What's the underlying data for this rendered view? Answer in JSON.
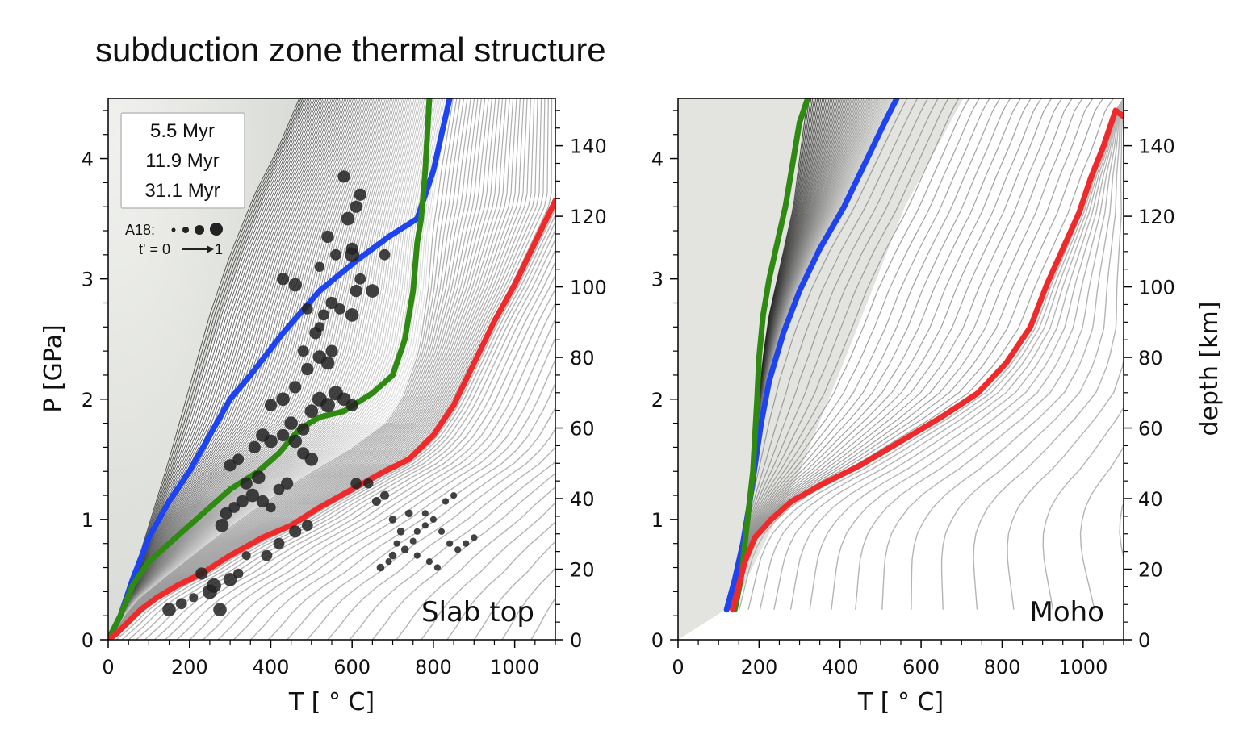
{
  "title": "subduction zone thermal structure",
  "colors": {
    "red": "#f02a2a",
    "green": "#2f8a12",
    "blue": "#1d44f0",
    "bg_region": "#e3e4e0",
    "thin_lines": "#b4b4b4",
    "dots": "#222222"
  },
  "legend": {
    "entries": [
      {
        "label": "5.5 Myr",
        "color": "#f02a2a"
      },
      {
        "label": "11.9 Myr",
        "color": "#2f8a12"
      },
      {
        "label": "31.1 Myr",
        "color": "#1d44f0"
      }
    ],
    "a18_label": "A18:",
    "t_label": "t' = 0",
    "t_end": "1"
  },
  "chart_data": [
    {
      "type": "line",
      "panel_label": "Slab top",
      "xlabel": "T [ ° C]",
      "ylabel": "P [GPa]",
      "ylabel_right": "",
      "xlim": [
        0,
        1100
      ],
      "ylim": [
        0,
        4.5
      ],
      "xticks": [
        0,
        200,
        400,
        600,
        800,
        1000
      ],
      "yticks": [
        0,
        1,
        2,
        3,
        4
      ],
      "y2lim": [
        0,
        153.4
      ],
      "y2ticks": [
        0,
        20,
        40,
        60,
        80,
        100,
        120,
        140
      ],
      "series": [
        {
          "name": "5.5 Myr",
          "color": "#f02a2a",
          "points": [
            [
              0,
              0
            ],
            [
              20,
              0.05
            ],
            [
              50,
              0.15
            ],
            [
              80,
              0.25
            ],
            [
              120,
              0.35
            ],
            [
              170,
              0.45
            ],
            [
              230,
              0.55
            ],
            [
              300,
              0.7
            ],
            [
              380,
              0.85
            ],
            [
              450,
              0.95
            ],
            [
              520,
              1.1
            ],
            [
              600,
              1.25
            ],
            [
              680,
              1.4
            ],
            [
              740,
              1.5
            ],
            [
              800,
              1.7
            ],
            [
              850,
              1.95
            ],
            [
              900,
              2.3
            ],
            [
              950,
              2.65
            ],
            [
              1000,
              2.95
            ],
            [
              1050,
              3.3
            ],
            [
              1100,
              3.65
            ]
          ]
        },
        {
          "name": "11.9 Myr",
          "color": "#2f8a12",
          "points": [
            [
              0,
              0
            ],
            [
              30,
              0.2
            ],
            [
              60,
              0.45
            ],
            [
              100,
              0.65
            ],
            [
              150,
              0.8
            ],
            [
              200,
              0.95
            ],
            [
              250,
              1.1
            ],
            [
              300,
              1.25
            ],
            [
              370,
              1.4
            ],
            [
              420,
              1.55
            ],
            [
              470,
              1.75
            ],
            [
              520,
              1.85
            ],
            [
              580,
              1.9
            ],
            [
              650,
              2.05
            ],
            [
              700,
              2.2
            ],
            [
              730,
              2.5
            ],
            [
              750,
              2.9
            ],
            [
              760,
              3.3
            ],
            [
              770,
              3.5
            ],
            [
              780,
              3.9
            ],
            [
              790,
              4.5
            ]
          ]
        },
        {
          "name": "31.1 Myr",
          "color": "#1d44f0",
          "points": [
            [
              0,
              0
            ],
            [
              30,
              0.2
            ],
            [
              60,
              0.5
            ],
            [
              100,
              0.85
            ],
            [
              150,
              1.15
            ],
            [
              200,
              1.4
            ],
            [
              250,
              1.7
            ],
            [
              300,
              2.0
            ],
            [
              350,
              2.2
            ],
            [
              430,
              2.55
            ],
            [
              520,
              2.9
            ],
            [
              610,
              3.15
            ],
            [
              690,
              3.35
            ],
            [
              760,
              3.5
            ],
            [
              800,
              3.9
            ],
            [
              820,
              4.2
            ],
            [
              840,
              4.5
            ]
          ]
        }
      ],
      "a18_points": [
        [
          150,
          0.25,
          0.9
        ],
        [
          180,
          0.3,
          0.7
        ],
        [
          210,
          0.35,
          0.5
        ],
        [
          230,
          0.55,
          0.8
        ],
        [
          250,
          0.4,
          1.0
        ],
        [
          260,
          0.45,
          1.0
        ],
        [
          275,
          0.25,
          0.9
        ],
        [
          300,
          0.5,
          0.9
        ],
        [
          320,
          0.55,
          0.6
        ],
        [
          340,
          0.7,
          0.5
        ],
        [
          390,
          0.7,
          0.7
        ],
        [
          420,
          0.8,
          0.7
        ],
        [
          460,
          0.9,
          0.8
        ],
        [
          490,
          0.95,
          0.7
        ],
        [
          280,
          0.95,
          0.9
        ],
        [
          290,
          1.05,
          0.8
        ],
        [
          310,
          1.1,
          0.7
        ],
        [
          330,
          1.15,
          0.8
        ],
        [
          355,
          1.2,
          0.9
        ],
        [
          380,
          1.15,
          0.8
        ],
        [
          400,
          1.1,
          0.6
        ],
        [
          420,
          1.25,
          0.7
        ],
        [
          440,
          1.3,
          0.8
        ],
        [
          340,
          1.3,
          0.8
        ],
        [
          370,
          1.35,
          0.9
        ],
        [
          300,
          1.45,
          0.8
        ],
        [
          320,
          1.5,
          0.7
        ],
        [
          360,
          1.6,
          0.8
        ],
        [
          400,
          1.65,
          0.9
        ],
        [
          430,
          1.7,
          0.8
        ],
        [
          450,
          1.8,
          0.9
        ],
        [
          480,
          1.75,
          0.8
        ],
        [
          500,
          1.9,
          0.9
        ],
        [
          520,
          2.0,
          1.0
        ],
        [
          540,
          1.95,
          1.0
        ],
        [
          560,
          2.05,
          1.0
        ],
        [
          580,
          2.0,
          0.9
        ],
        [
          600,
          1.95,
          0.8
        ],
        [
          500,
          1.5,
          0.9
        ],
        [
          480,
          1.55,
          0.8
        ],
        [
          460,
          1.65,
          0.9
        ],
        [
          380,
          1.7,
          0.9
        ],
        [
          400,
          1.95,
          0.8
        ],
        [
          430,
          2.0,
          0.9
        ],
        [
          460,
          2.1,
          0.8
        ],
        [
          490,
          2.25,
          0.8
        ],
        [
          520,
          2.35,
          0.9
        ],
        [
          550,
          2.4,
          0.8
        ],
        [
          540,
          2.3,
          0.9
        ],
        [
          480,
          2.4,
          0.7
        ],
        [
          510,
          2.55,
          0.8
        ],
        [
          530,
          2.7,
          0.7
        ],
        [
          550,
          2.8,
          0.8
        ],
        [
          570,
          2.75,
          0.7
        ],
        [
          600,
          2.7,
          0.9
        ],
        [
          610,
          2.9,
          0.8
        ],
        [
          620,
          3.0,
          0.7
        ],
        [
          650,
          2.9,
          0.9
        ],
        [
          680,
          3.2,
          0.7
        ],
        [
          520,
          3.1,
          0.6
        ],
        [
          560,
          3.2,
          0.7
        ],
        [
          600,
          3.25,
          0.8
        ],
        [
          540,
          3.35,
          0.8
        ],
        [
          590,
          3.5,
          0.9
        ],
        [
          610,
          3.6,
          0.8
        ],
        [
          620,
          3.7,
          0.8
        ],
        [
          580,
          3.85,
          0.8
        ],
        [
          600,
          3.2,
          1.0
        ],
        [
          430,
          3.0,
          0.8
        ],
        [
          460,
          2.95,
          0.9
        ],
        [
          490,
          2.75,
          0.7
        ],
        [
          520,
          2.6,
          0.6
        ],
        [
          610,
          1.3,
          0.7
        ],
        [
          640,
          1.3,
          0.6
        ],
        [
          660,
          1.15,
          0.5
        ],
        [
          680,
          1.2,
          0.5
        ],
        [
          700,
          1.0,
          0.4
        ],
        [
          720,
          0.9,
          0.4
        ],
        [
          740,
          1.05,
          0.4
        ],
        [
          760,
          0.9,
          0.3
        ],
        [
          780,
          0.95,
          0.3
        ],
        [
          800,
          1.0,
          0.3
        ],
        [
          820,
          0.9,
          0.3
        ],
        [
          840,
          0.8,
          0.3
        ],
        [
          860,
          0.75,
          0.3
        ],
        [
          880,
          0.8,
          0.3
        ],
        [
          900,
          0.85,
          0.3
        ],
        [
          670,
          0.6,
          0.4
        ],
        [
          700,
          0.7,
          0.4
        ],
        [
          730,
          0.75,
          0.4
        ],
        [
          760,
          0.7,
          0.3
        ],
        [
          790,
          0.65,
          0.3
        ],
        [
          810,
          0.6,
          0.3
        ],
        [
          690,
          0.65,
          0.3
        ],
        [
          710,
          0.8,
          0.3
        ],
        [
          750,
          0.82,
          0.3
        ],
        [
          780,
          1.05,
          0.3
        ],
        [
          830,
          1.15,
          0.3
        ],
        [
          850,
          1.2,
          0.3
        ]
      ]
    },
    {
      "type": "line",
      "panel_label": "Moho",
      "xlabel": "T [ ° C]",
      "ylabel": "",
      "ylabel_right": "depth [km]",
      "xlim": [
        0,
        1100
      ],
      "ylim": [
        0,
        4.5
      ],
      "xticks": [
        0,
        200,
        400,
        600,
        800,
        1000
      ],
      "yticks": [
        0,
        1,
        2,
        3,
        4
      ],
      "y2lim": [
        0,
        153.4
      ],
      "y2ticks": [
        0,
        20,
        40,
        60,
        80,
        100,
        120,
        140
      ],
      "series": [
        {
          "name": "5.5 Myr",
          "color": "#f02a2a",
          "points": [
            [
              135,
              0.25
            ],
            [
              150,
              0.45
            ],
            [
              165,
              0.65
            ],
            [
              190,
              0.85
            ],
            [
              230,
              1.0
            ],
            [
              280,
              1.15
            ],
            [
              360,
              1.3
            ],
            [
              450,
              1.45
            ],
            [
              550,
              1.65
            ],
            [
              650,
              1.85
            ],
            [
              740,
              2.05
            ],
            [
              810,
              2.3
            ],
            [
              870,
              2.6
            ],
            [
              910,
              2.95
            ],
            [
              950,
              3.25
            ],
            [
              990,
              3.55
            ],
            [
              1020,
              3.85
            ],
            [
              1050,
              4.1
            ],
            [
              1080,
              4.4
            ],
            [
              1100,
              4.35
            ]
          ]
        },
        {
          "name": "11.9 Myr",
          "color": "#2f8a12",
          "points": [
            [
              140,
              0.25
            ],
            [
              155,
              0.5
            ],
            [
              165,
              0.8
            ],
            [
              175,
              1.1
            ],
            [
              185,
              1.4
            ],
            [
              190,
              1.7
            ],
            [
              195,
              2.0
            ],
            [
              200,
              2.35
            ],
            [
              210,
              2.7
            ],
            [
              225,
              3.0
            ],
            [
              245,
              3.3
            ],
            [
              265,
              3.6
            ],
            [
              285,
              4.0
            ],
            [
              300,
              4.3
            ],
            [
              320,
              4.5
            ]
          ]
        },
        {
          "name": "31.1 Myr",
          "color": "#1d44f0",
          "points": [
            [
              120,
              0.25
            ],
            [
              140,
              0.5
            ],
            [
              160,
              0.8
            ],
            [
              175,
              1.1
            ],
            [
              190,
              1.45
            ],
            [
              205,
              1.8
            ],
            [
              225,
              2.15
            ],
            [
              260,
              2.55
            ],
            [
              300,
              2.9
            ],
            [
              350,
              3.25
            ],
            [
              410,
              3.6
            ],
            [
              460,
              3.95
            ],
            [
              510,
              4.3
            ],
            [
              540,
              4.5
            ]
          ]
        }
      ],
      "a18_points": []
    }
  ]
}
